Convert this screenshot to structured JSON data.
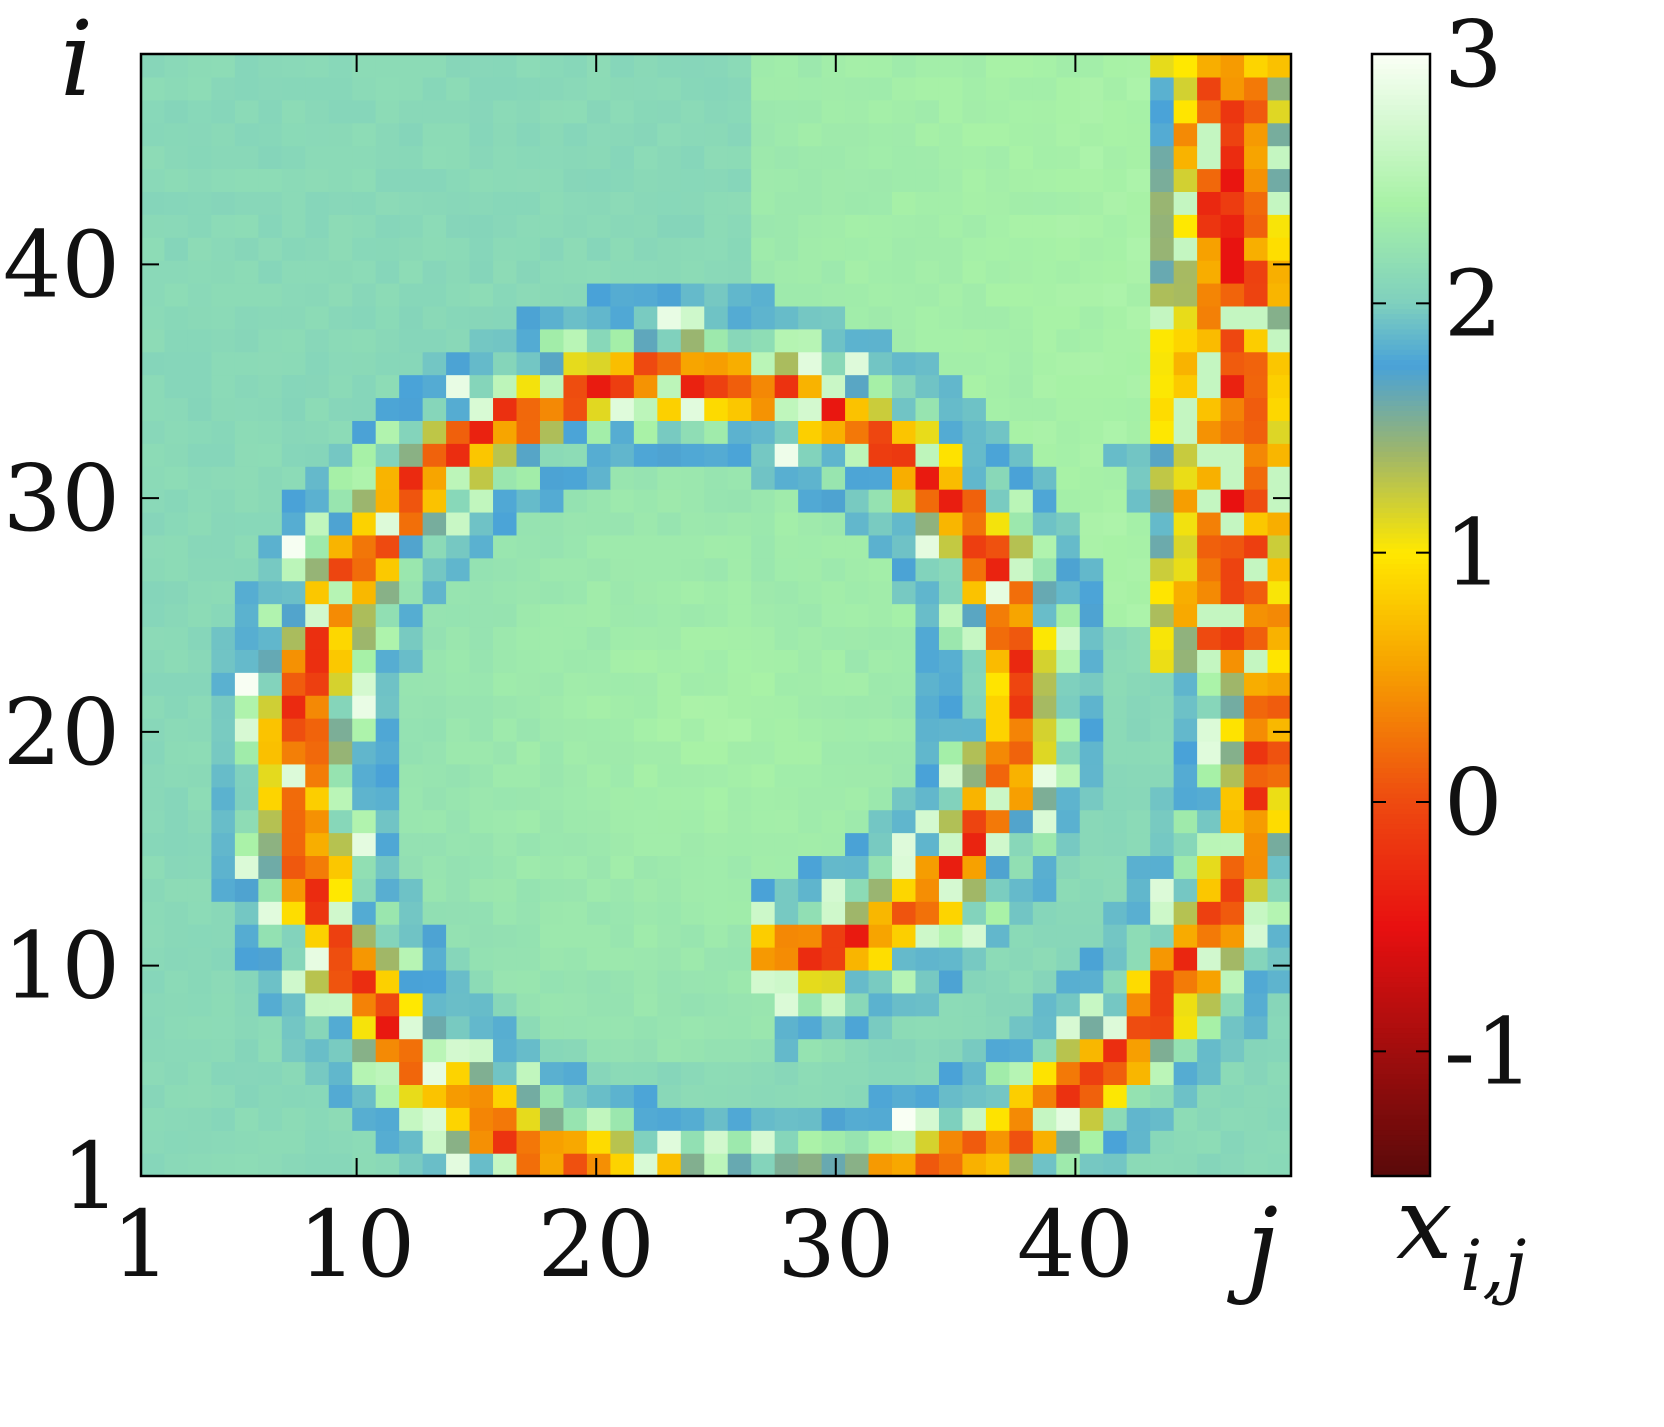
{
  "chart_data": {
    "type": "heatmap",
    "title": "",
    "xlabel": "j",
    "ylabel": "i",
    "colorbar_label": {
      "base": "x",
      "sub": "i,j"
    },
    "grid_size": 49,
    "x_ticks": [
      1,
      10,
      20,
      30,
      40
    ],
    "y_ticks": [
      1,
      10,
      20,
      30,
      40
    ],
    "colorbar_range": [
      -1.5,
      3
    ],
    "colorbar_ticks": [
      {
        "value": 3,
        "label": "3"
      },
      {
        "value": 2,
        "label": "2"
      },
      {
        "value": 1,
        "label": "1"
      },
      {
        "value": 0,
        "label": "0"
      },
      {
        "value": -1,
        "label": "-1"
      }
    ],
    "colormap": [
      {
        "value": -1.5,
        "color": "#5a0a0a"
      },
      {
        "value": -0.5,
        "color": "#e81010"
      },
      {
        "value": 0.0,
        "color": "#ee4a10"
      },
      {
        "value": 0.55,
        "color": "#f7a300"
      },
      {
        "value": 1.0,
        "color": "#ffe800"
      },
      {
        "value": 1.4,
        "color": "#9fb66a"
      },
      {
        "value": 1.75,
        "color": "#49a2d8"
      },
      {
        "value": 2.0,
        "color": "#7fd0be"
      },
      {
        "value": 2.4,
        "color": "#a8f2a6"
      },
      {
        "value": 3.0,
        "color": "#fbfff6"
      }
    ],
    "background_level": 2.1,
    "spiral_core_level": 2.4,
    "pattern": "spiral wave: a band of low x (0 to 1) winding around a high-x core centered near j=25, i=20, with the outer arm running up the right edge to i=49 and the inner arm ending near j=24, i=27"
  }
}
